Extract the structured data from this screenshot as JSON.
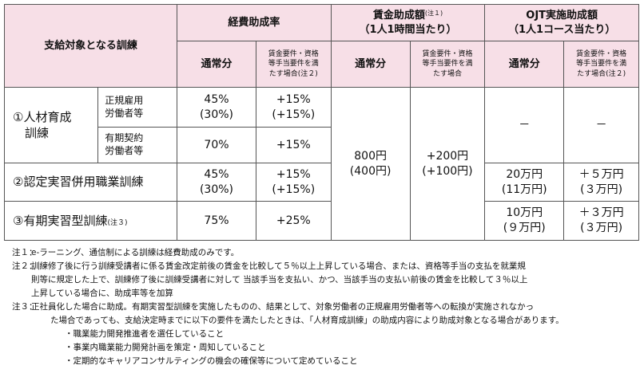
{
  "table": {
    "corner": "支給対象となる訓練",
    "groups": {
      "expense": {
        "title": "経費助成率"
      },
      "wage": {
        "title": "賃金助成額",
        "note": "(注１)",
        "sub": "（1人1時間当たり）"
      },
      "ojt": {
        "title": "OJT実施助成額",
        "sub": "（1人1コース当たり）"
      }
    },
    "cols": {
      "normal": "通常分",
      "cond": "賃金要件・資格\n等手当要件を満\nたす場合",
      "cond_note": "(注２)"
    },
    "rows": {
      "jinzai": {
        "label": "①人材育成\n　訓練",
        "regular": {
          "label": "正規雇用\n労働者等",
          "expense_normal": "45%\n(30%)",
          "expense_cond": "+15%\n(+15%)"
        },
        "fixed": {
          "label": "有期契約\n労働者等",
          "expense_normal": "70%",
          "expense_cond": "+15%"
        },
        "ojt_normal": "－",
        "ojt_cond": "－"
      },
      "nintei": {
        "label": "②認定実習併用職業訓練",
        "expense_normal": "45%\n(30%)",
        "expense_cond": "+15%\n(+15%)",
        "ojt_normal": "20万円\n(11万円)",
        "ojt_cond": "＋５万円\n(３万円)"
      },
      "yuki": {
        "label": "③有期実習型訓練",
        "note": "(注３)",
        "expense_normal": "75%",
        "expense_cond": "+25%",
        "ojt_normal": "10万円\n(９万円)",
        "ojt_cond": "＋３万円\n(３万円)"
      },
      "wage_normal": "800円\n(400円)",
      "wage_cond": "+200円\n(+100円)"
    }
  },
  "notes": {
    "n1": {
      "label": "注１：",
      "text": "e-ラーニング、通信制による訓練は経費助成のみです。"
    },
    "n2": {
      "label": "注２：",
      "line1": "訓練修了後に行う訓練受講者に係る賃金改定前後の賃金を比較して５％以上上昇している場合、または、資格等手当の支払を就業規",
      "line2": "則等に規定した上で、訓練修了後に訓練受講者に対して 当該手当を支払い、かつ、当該手当の支払い前後の賃金を比較して３％以上",
      "line3": "上昇している場合に、助成率等を加算"
    },
    "n3": {
      "label": "注３：",
      "line1": "正社員化した場合に助成。有期実習型訓練を実施したものの、結果として、対象労働者の正規雇用労働者等への転換が実施されなかっ",
      "line2": "た場合であっても、支給決定時までに以下の要件を満たしたときは、「人材育成訓練」の助成内容により助成対象となる場合があります。",
      "bullets": [
        "・職業能力開発推進者を選任していること",
        "・事業内職業能力開発計画を策定・周知していること",
        "・定期的なキャリアコンサルティングの機会の確保等について定めていること"
      ]
    }
  }
}
